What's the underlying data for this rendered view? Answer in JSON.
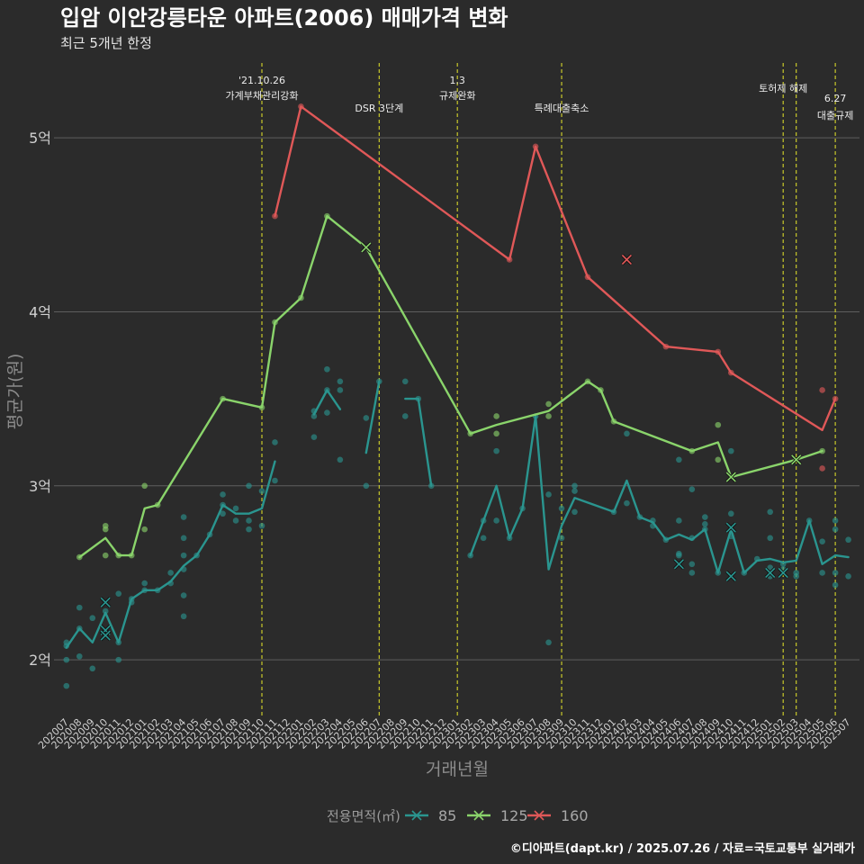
{
  "background": "#2b2b2b",
  "footer": "©디아파트(dapt.kr) / 2025.07.26 / 자료=국토교통부 실거래가",
  "chart_data": {
    "type": "line",
    "title": "입암 이안강릉타운 아파트(2006) 매매가격 변화",
    "subtitle": "최근 5개년 한정",
    "xlabel": "거래년월",
    "ylabel": "평균가(원)",
    "ylim": [
      1.68,
      5.43
    ],
    "grid": "horizontal",
    "yticks": [
      {
        "value": 2,
        "label": "2억"
      },
      {
        "value": 3,
        "label": "3억"
      },
      {
        "value": 4,
        "label": "4억"
      },
      {
        "value": 5,
        "label": "5억"
      }
    ],
    "x": [
      "202007",
      "202008",
      "202009",
      "202010",
      "202011",
      "202012",
      "202101",
      "202102",
      "202103",
      "202104",
      "202105",
      "202106",
      "202107",
      "202108",
      "202109",
      "202110",
      "202111",
      "202112",
      "202201",
      "202202",
      "202203",
      "202204",
      "202205",
      "202206",
      "202207",
      "202208",
      "202209",
      "202210",
      "202211",
      "202212",
      "202301",
      "202302",
      "202303",
      "202304",
      "202305",
      "202306",
      "202307",
      "202308",
      "202309",
      "202310",
      "202311",
      "202312",
      "202401",
      "202402",
      "202403",
      "202404",
      "202405",
      "202406",
      "202407",
      "202408",
      "202409",
      "202410",
      "202411",
      "202412",
      "202501",
      "202502",
      "202503",
      "202504",
      "202505",
      "202506",
      "202507"
    ],
    "legend": {
      "title": "전용면적(㎡)",
      "position": "bottom"
    },
    "event_line_color": "#c9c92a",
    "events": [
      {
        "x": "202110",
        "label": [
          "'21.10.26",
          "가계부채관리강화"
        ]
      },
      {
        "x": "202207",
        "label": [
          "DSR 3단계"
        ]
      },
      {
        "x": "202301",
        "label": [
          "1.3",
          "규제완화"
        ]
      },
      {
        "x": "202309",
        "label": [
          "특례대출축소"
        ]
      },
      {
        "x": "202502",
        "label": [
          "토허제 해제"
        ]
      },
      {
        "x": "202503",
        "label": []
      },
      {
        "x": "202506",
        "label": [
          "6.27",
          "대출규제"
        ]
      }
    ],
    "series": [
      {
        "name": "85",
        "color": "#2a958f",
        "line_segments": [
          [
            [
              "202007",
              2.07
            ],
            [
              "202008",
              2.18
            ],
            [
              "202009",
              2.1
            ],
            [
              "202010",
              2.27
            ],
            [
              "202011",
              2.1
            ],
            [
              "202012",
              2.35
            ],
            [
              "202101",
              2.4
            ],
            [
              "202102",
              2.4
            ],
            [
              "202103",
              2.45
            ],
            [
              "202104",
              2.54
            ],
            [
              "202105",
              2.6
            ],
            [
              "202106",
              2.72
            ],
            [
              "202107",
              2.89
            ],
            [
              "202108",
              2.84
            ],
            [
              "202109",
              2.84
            ],
            [
              "202110",
              2.87
            ],
            [
              "202111",
              3.14
            ]
          ],
          [
            [
              "202202",
              3.41
            ],
            [
              "202203",
              3.55
            ],
            [
              "202204",
              3.44
            ]
          ],
          [
            [
              "202206",
              3.19
            ],
            [
              "202207",
              3.6
            ]
          ],
          [
            [
              "202209",
              3.5
            ],
            [
              "202210",
              3.5
            ],
            [
              "202211",
              3.0
            ]
          ],
          [
            [
              "202302",
              2.6
            ],
            [
              "202303",
              2.8
            ],
            [
              "202304",
              3.0
            ],
            [
              "202305",
              2.7
            ],
            [
              "202306",
              2.87
            ],
            [
              "202307",
              3.4
            ],
            [
              "202308",
              2.52
            ],
            [
              "202309",
              2.77
            ],
            [
              "202310",
              2.93
            ],
            [
              "202401",
              2.85
            ],
            [
              "202402",
              3.03
            ],
            [
              "202403",
              2.82
            ],
            [
              "202404",
              2.79
            ],
            [
              "202405",
              2.69
            ],
            [
              "202406",
              2.72
            ],
            [
              "202407",
              2.69
            ],
            [
              "202408",
              2.75
            ],
            [
              "202409",
              2.5
            ],
            [
              "202410",
              2.75
            ],
            [
              "202411",
              2.5
            ],
            [
              "202412",
              2.57
            ],
            [
              "202501",
              2.58
            ],
            [
              "202502",
              2.56
            ],
            [
              "202503",
              2.57
            ],
            [
              "202504",
              2.8
            ],
            [
              "202505",
              2.55
            ],
            [
              "202506",
              2.6
            ],
            [
              "202507",
              2.59
            ]
          ]
        ],
        "transactions": [
          [
            "202007",
            2.1
          ],
          [
            "202007",
            2.08
          ],
          [
            "202007",
            2.0
          ],
          [
            "202007",
            1.85
          ],
          [
            "202008",
            2.3
          ],
          [
            "202008",
            2.18
          ],
          [
            "202008",
            2.02
          ],
          [
            "202009",
            2.24
          ],
          [
            "202009",
            1.95
          ],
          [
            "202010",
            2.28
          ],
          [
            "202011",
            2.38
          ],
          [
            "202011",
            2.1
          ],
          [
            "202011",
            2.0
          ],
          [
            "202012",
            2.35
          ],
          [
            "202012",
            2.33
          ],
          [
            "202101",
            2.44
          ],
          [
            "202101",
            2.4
          ],
          [
            "202102",
            2.4
          ],
          [
            "202103",
            2.5
          ],
          [
            "202103",
            2.44
          ],
          [
            "202104",
            2.82
          ],
          [
            "202104",
            2.7
          ],
          [
            "202104",
            2.6
          ],
          [
            "202104",
            2.52
          ],
          [
            "202104",
            2.37
          ],
          [
            "202104",
            2.25
          ],
          [
            "202105",
            2.6
          ],
          [
            "202106",
            2.72
          ],
          [
            "202107",
            2.95
          ],
          [
            "202107",
            2.89
          ],
          [
            "202107",
            2.84
          ],
          [
            "202108",
            2.87
          ],
          [
            "202108",
            2.8
          ],
          [
            "202109",
            3.0
          ],
          [
            "202109",
            2.8
          ],
          [
            "202109",
            2.75
          ],
          [
            "202110",
            2.97
          ],
          [
            "202110",
            2.77
          ],
          [
            "202111",
            3.25
          ],
          [
            "202111",
            3.03
          ],
          [
            "202202",
            3.43
          ],
          [
            "202202",
            3.4
          ],
          [
            "202202",
            3.28
          ],
          [
            "202203",
            3.67
          ],
          [
            "202203",
            3.55
          ],
          [
            "202203",
            3.42
          ],
          [
            "202204",
            3.6
          ],
          [
            "202204",
            3.55
          ],
          [
            "202204",
            3.15
          ],
          [
            "202206",
            3.39
          ],
          [
            "202206",
            3.0
          ],
          [
            "202207",
            3.6
          ],
          [
            "202209",
            3.6
          ],
          [
            "202209",
            3.4
          ],
          [
            "202210",
            3.5
          ],
          [
            "202211",
            3.0
          ],
          [
            "202302",
            2.6
          ],
          [
            "202303",
            2.8
          ],
          [
            "202303",
            2.7
          ],
          [
            "202304",
            3.2
          ],
          [
            "202304",
            2.8
          ],
          [
            "202305",
            2.7
          ],
          [
            "202306",
            2.87
          ],
          [
            "202307",
            3.4
          ],
          [
            "202308",
            2.95
          ],
          [
            "202308",
            2.1
          ],
          [
            "202309",
            2.87
          ],
          [
            "202309",
            2.7
          ],
          [
            "202310",
            3.0
          ],
          [
            "202310",
            2.97
          ],
          [
            "202310",
            2.85
          ],
          [
            "202401",
            2.85
          ],
          [
            "202402",
            3.3
          ],
          [
            "202402",
            2.9
          ],
          [
            "202403",
            2.82
          ],
          [
            "202404",
            2.8
          ],
          [
            "202404",
            2.77
          ],
          [
            "202405",
            2.69
          ],
          [
            "202406",
            3.15
          ],
          [
            "202406",
            2.8
          ],
          [
            "202406",
            2.61
          ],
          [
            "202406",
            2.6
          ],
          [
            "202407",
            2.98
          ],
          [
            "202407",
            2.7
          ],
          [
            "202407",
            2.55
          ],
          [
            "202407",
            2.5
          ],
          [
            "202408",
            2.82
          ],
          [
            "202408",
            2.78
          ],
          [
            "202408",
            2.75
          ],
          [
            "202409",
            2.5
          ],
          [
            "202410",
            3.2
          ],
          [
            "202410",
            2.84
          ],
          [
            "202410",
            2.71
          ],
          [
            "202411",
            2.5
          ],
          [
            "202412",
            2.58
          ],
          [
            "202501",
            2.85
          ],
          [
            "202501",
            2.7
          ],
          [
            "202501",
            2.53
          ],
          [
            "202501",
            2.48
          ],
          [
            "202502",
            2.55
          ],
          [
            "202502",
            2.52
          ],
          [
            "202503",
            2.5
          ],
          [
            "202503",
            2.48
          ],
          [
            "202504",
            2.8
          ],
          [
            "202505",
            2.68
          ],
          [
            "202505",
            2.5
          ],
          [
            "202506",
            2.8
          ],
          [
            "202506",
            2.75
          ],
          [
            "202506",
            2.5
          ],
          [
            "202506",
            2.43
          ],
          [
            "202507",
            2.69
          ],
          [
            "202507",
            2.48
          ]
        ],
        "x_marks": [
          [
            "202010",
            2.33
          ],
          [
            "202010",
            2.17
          ],
          [
            "202010",
            2.14
          ],
          [
            "202406",
            2.55
          ],
          [
            "202410",
            2.76
          ],
          [
            "202410",
            2.48
          ],
          [
            "202501",
            2.5
          ],
          [
            "202502",
            2.5
          ]
        ]
      },
      {
        "name": "125",
        "color": "#8ad46b",
        "line_segments": [
          [
            [
              "202008",
              2.59
            ],
            [
              "202010",
              2.7
            ],
            [
              "202011",
              2.6
            ],
            [
              "202012",
              2.6
            ],
            [
              "202101",
              2.87
            ],
            [
              "202102",
              2.89
            ],
            [
              "202107",
              3.5
            ],
            [
              "202110",
              3.45
            ],
            [
              "202111",
              3.94
            ],
            [
              "202201",
              4.08
            ],
            [
              "202203",
              4.55
            ],
            [
              "202206",
              4.37
            ],
            [
              "202302",
              3.3
            ],
            [
              "202304",
              3.35
            ],
            [
              "202308",
              3.43
            ],
            [
              "202311",
              3.6
            ],
            [
              "202312",
              3.55
            ],
            [
              "202401",
              3.37
            ],
            [
              "202407",
              3.2
            ],
            [
              "202409",
              3.25
            ],
            [
              "202410",
              3.05
            ],
            [
              "202503",
              3.15
            ],
            [
              "202505",
              3.2
            ]
          ]
        ],
        "transactions": [
          [
            "202008",
            2.59
          ],
          [
            "202010",
            2.77
          ],
          [
            "202010",
            2.75
          ],
          [
            "202010",
            2.6
          ],
          [
            "202011",
            2.6
          ],
          [
            "202012",
            2.6
          ],
          [
            "202101",
            3.0
          ],
          [
            "202101",
            2.75
          ],
          [
            "202102",
            2.89
          ],
          [
            "202107",
            3.5
          ],
          [
            "202110",
            3.45
          ],
          [
            "202111",
            3.94
          ],
          [
            "202201",
            4.08
          ],
          [
            "202203",
            4.55
          ],
          [
            "202302",
            3.3
          ],
          [
            "202304",
            3.4
          ],
          [
            "202304",
            3.3
          ],
          [
            "202308",
            3.47
          ],
          [
            "202308",
            3.4
          ],
          [
            "202311",
            3.6
          ],
          [
            "202312",
            3.55
          ],
          [
            "202401",
            3.37
          ],
          [
            "202407",
            3.2
          ],
          [
            "202409",
            3.35
          ],
          [
            "202409",
            3.15
          ],
          [
            "202505",
            3.2
          ]
        ],
        "x_marks": [
          [
            "202206",
            4.37
          ],
          [
            "202410",
            3.05
          ],
          [
            "202503",
            3.15
          ]
        ]
      },
      {
        "name": "160",
        "color": "#e05858",
        "line_segments": [
          [
            [
              "202111",
              4.55
            ],
            [
              "202201",
              5.18
            ],
            [
              "202305",
              4.3
            ],
            [
              "202307",
              4.95
            ],
            [
              "202311",
              4.2
            ],
            [
              "202405",
              3.8
            ],
            [
              "202409",
              3.77
            ],
            [
              "202410",
              3.65
            ],
            [
              "202505",
              3.32
            ],
            [
              "202506",
              3.5
            ]
          ]
        ],
        "transactions": [
          [
            "202111",
            4.55
          ],
          [
            "202201",
            5.18
          ],
          [
            "202305",
            4.3
          ],
          [
            "202307",
            4.95
          ],
          [
            "202311",
            4.2
          ],
          [
            "202405",
            3.8
          ],
          [
            "202409",
            3.77
          ],
          [
            "202410",
            3.65
          ],
          [
            "202505",
            3.55
          ],
          [
            "202505",
            3.1
          ],
          [
            "202506",
            3.5
          ]
        ],
        "x_marks": [
          [
            "202402",
            4.3
          ]
        ]
      }
    ]
  }
}
